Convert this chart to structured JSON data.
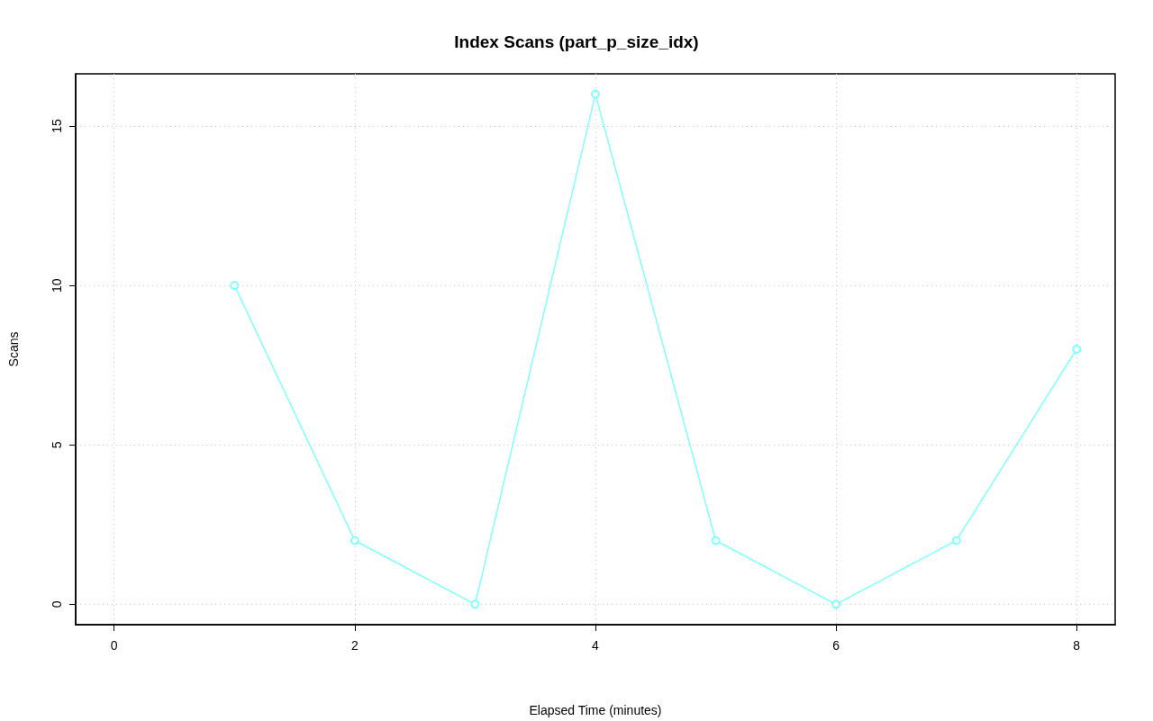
{
  "chart_data": {
    "type": "line",
    "title": "Index Scans (part_p_size_idx)",
    "xlabel": "Elapsed Time (minutes)",
    "ylabel": "Scans",
    "x": [
      1,
      2,
      3,
      4,
      5,
      6,
      7,
      8
    ],
    "series": [
      {
        "color": "#80ffff",
        "values": [
          10,
          2,
          0,
          16,
          2,
          0,
          2,
          8
        ]
      }
    ],
    "xlim": [
      -0.32,
      8.32
    ],
    "ylim": [
      -0.64,
      16.64
    ],
    "xticks": [
      0,
      2,
      4,
      6,
      8
    ],
    "yticks": [
      0,
      5,
      10,
      15
    ],
    "grid": true,
    "marker": "circle",
    "line_style": "solid"
  }
}
